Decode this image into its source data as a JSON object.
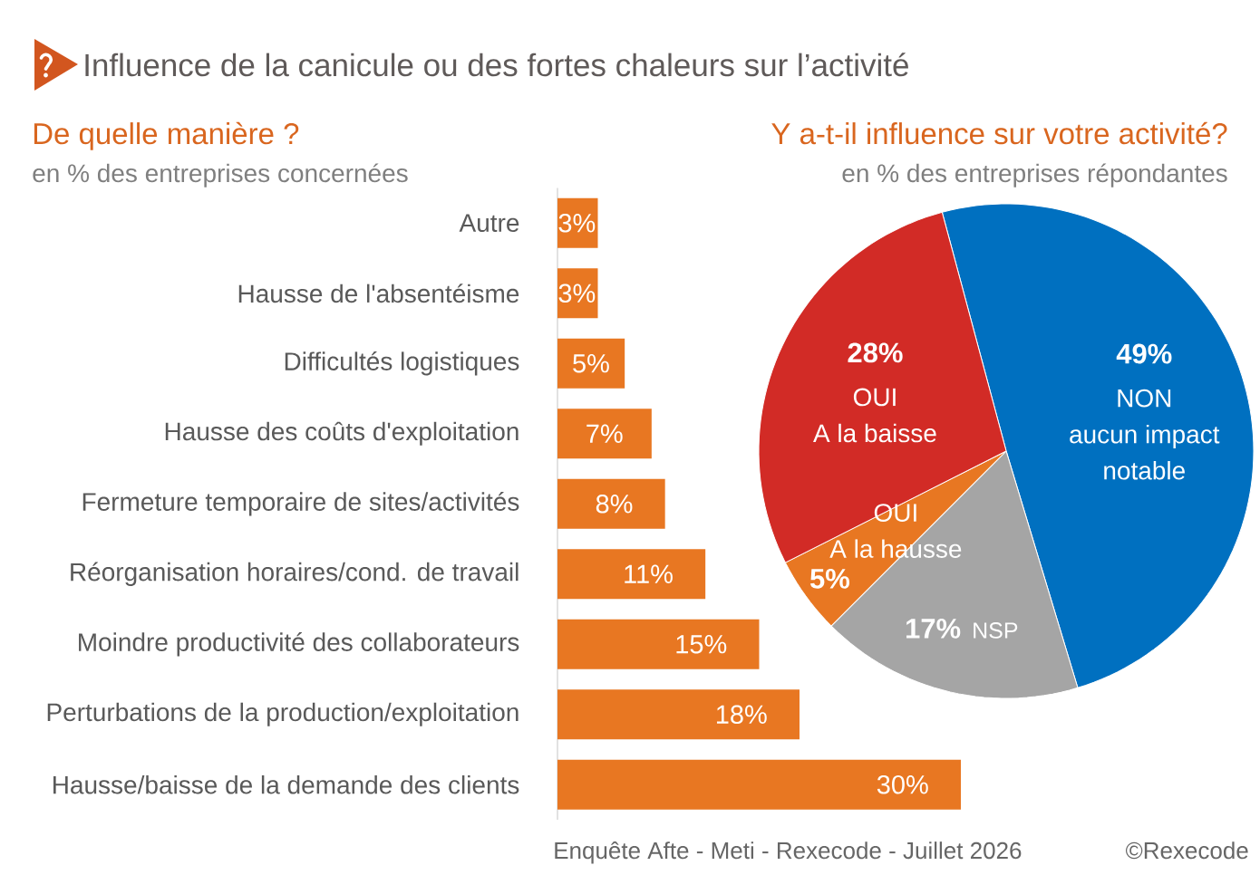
{
  "chart_data": [
    {
      "type": "other",
      "title": "Influence de la canicule ou des fortes chaleurs sur l’activité",
      "annotations": [
        "Enquête Afte - Meti - Rexecode - Juillet 2026",
        "©Rexecode"
      ]
    },
    {
      "type": "bar",
      "orientation": "horizontal",
      "title": "De quelle manière ?",
      "subtitle": "en % des entreprises concernées",
      "categories": [
        "Autre",
        "Hausse de l'absentéisme",
        "Difficultés logistiques",
        "Hausse des coûts d'exploitation",
        "Fermeture temporaire de sites/activités",
        "Réorganisation horaires/cond. de travail",
        "Moindre productivité des collaborateurs",
        "Perturbations de la production/exploitation",
        "Hausse/baisse de la demande des clients"
      ],
      "values": [
        3,
        3,
        5,
        7,
        8,
        11,
        15,
        18,
        30
      ],
      "value_labels": [
        "3%",
        "3%",
        "5%",
        "7%",
        "8%",
        "11%",
        "15%",
        "18%",
        "30%"
      ],
      "color": "#e87722"
    },
    {
      "type": "pie",
      "title": "Y a-t-il influence sur votre activité?",
      "subtitle": "en % des entreprises répondantes",
      "categories": [
        "NON\naucun impact\nnotable",
        "NSP",
        "OUI\nA la hausse",
        "OUI\nA la baisse"
      ],
      "values": [
        49,
        17,
        5,
        28
      ],
      "value_labels": [
        "49%",
        "17%",
        "5%",
        "28%"
      ],
      "colors": [
        "#0070c0",
        "#a5a5a5",
        "#e87722",
        "#d22b26"
      ]
    }
  ]
}
